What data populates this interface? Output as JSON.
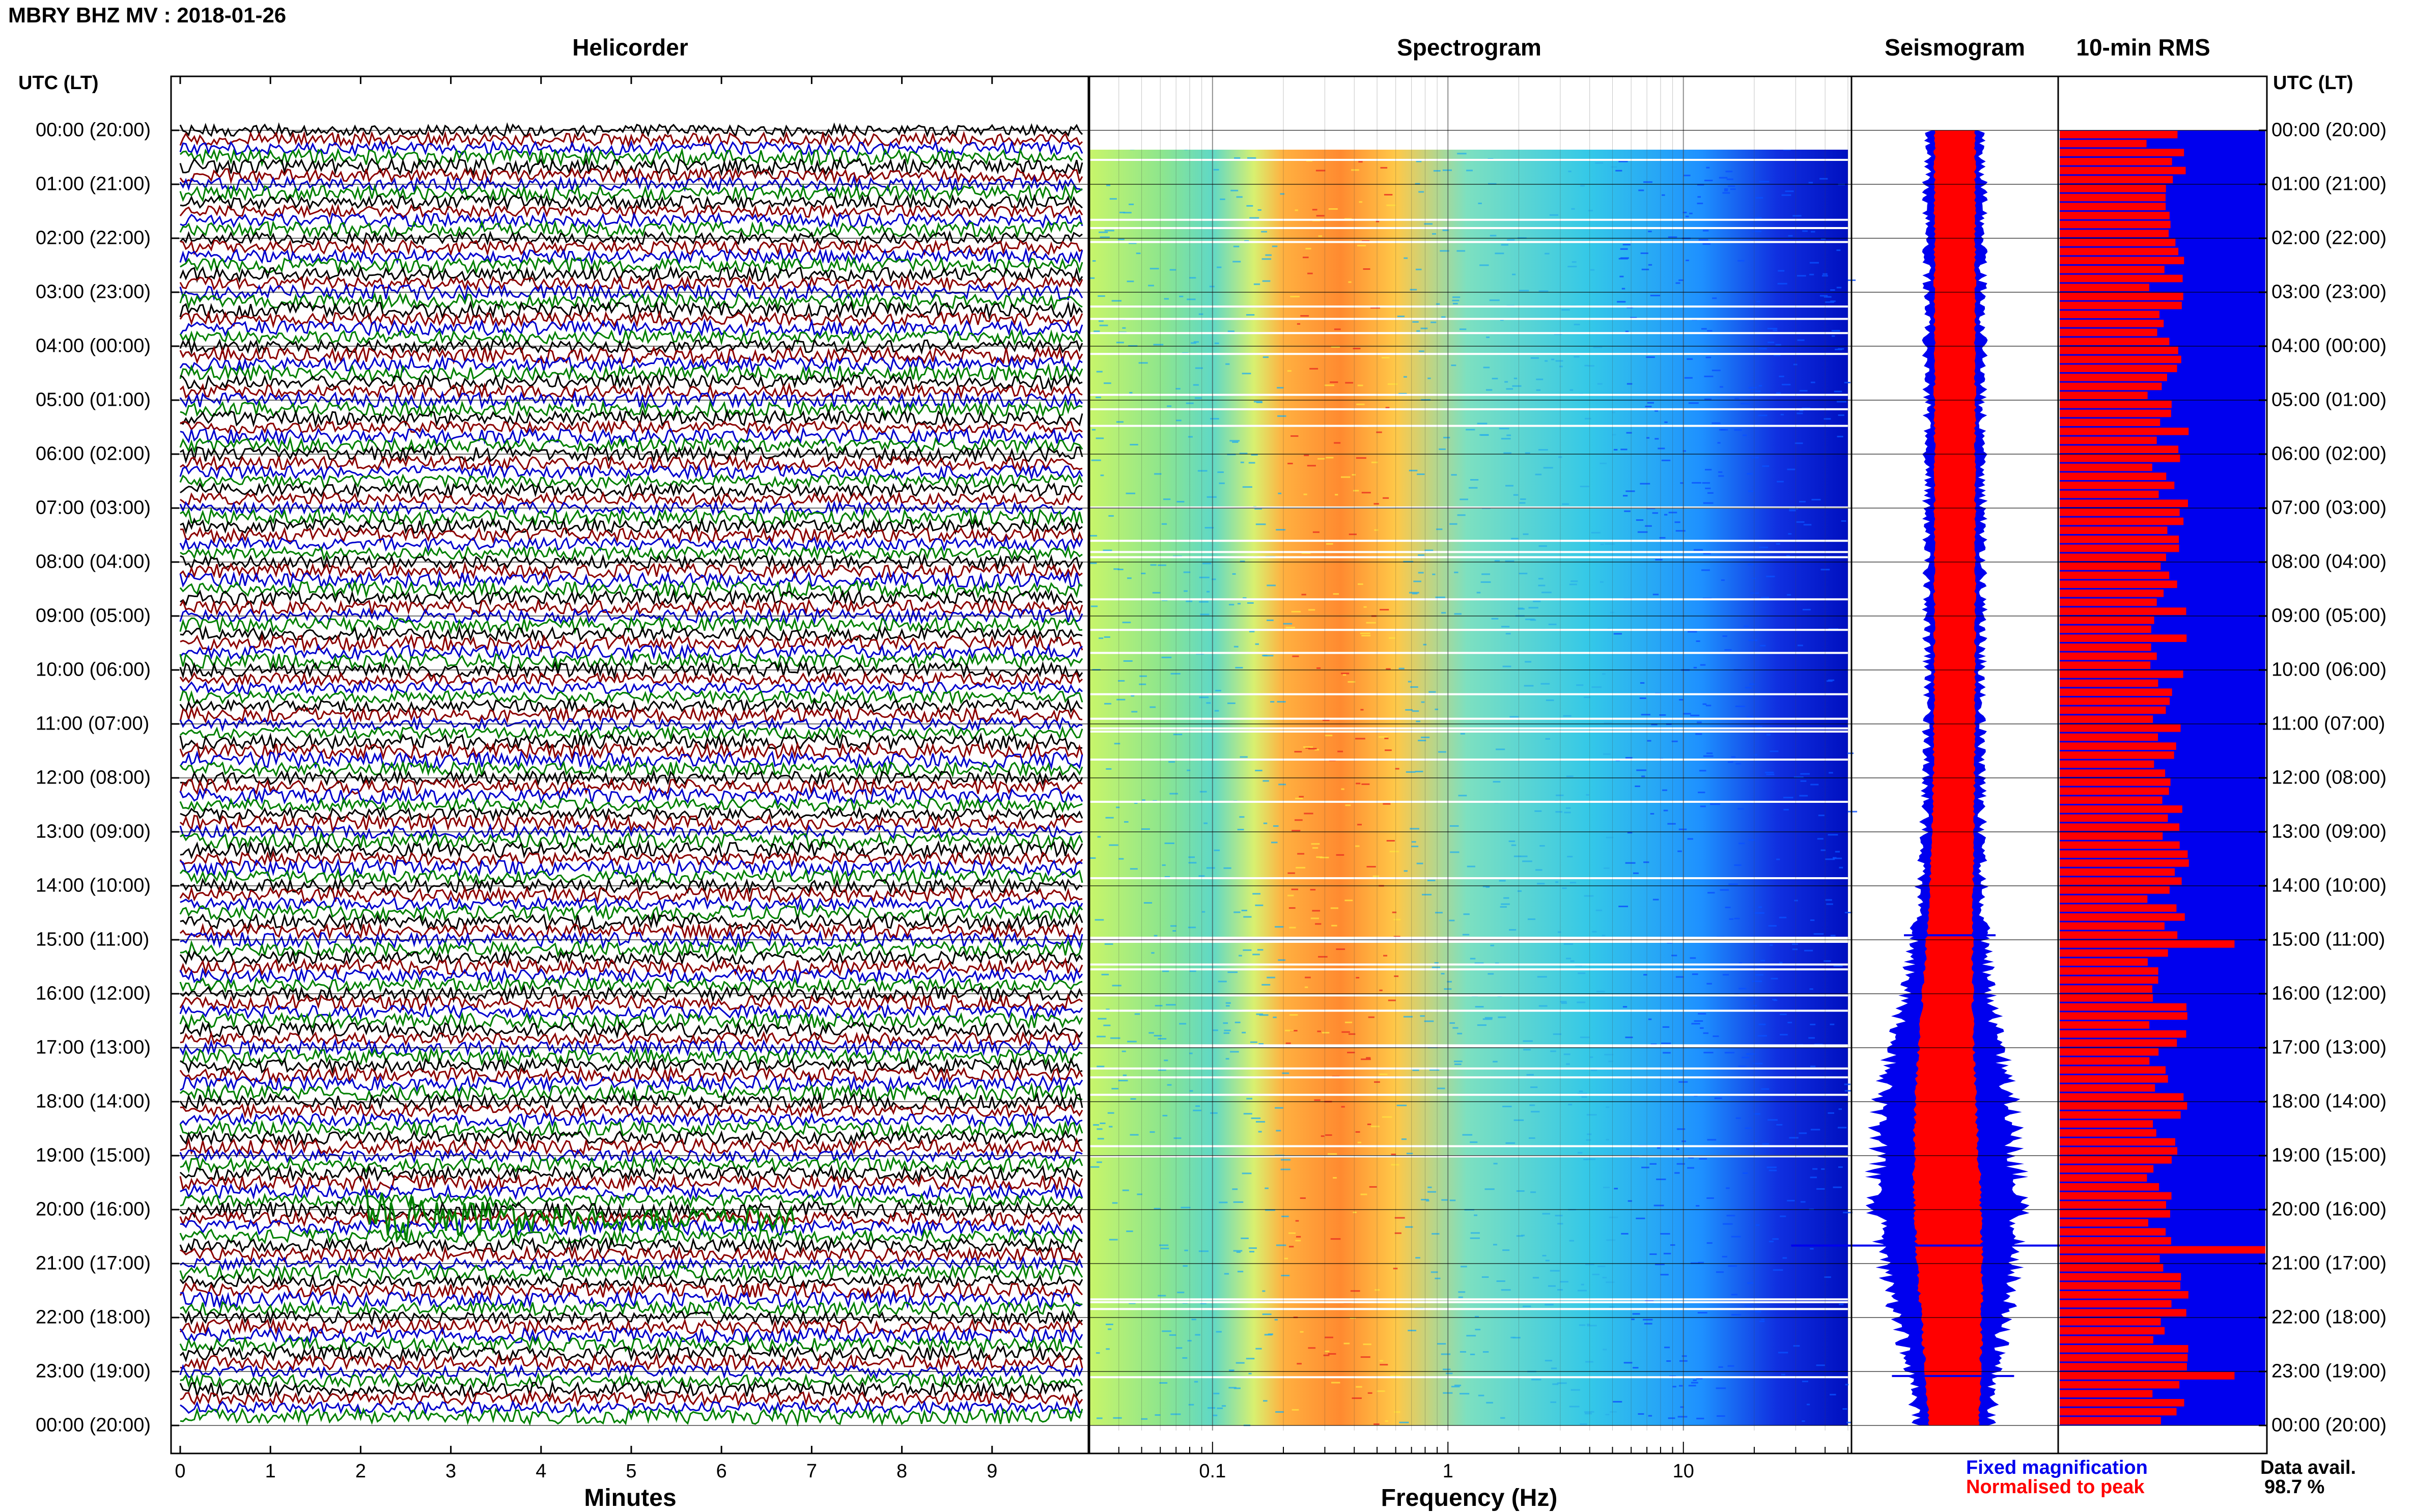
{
  "title": "MBRY BHZ MV : 2018-01-26",
  "panels": {
    "helicorder": "Helicorder",
    "spectrogram": "Spectrogram",
    "seismogram": "Seismogram",
    "rms": "10-min RMS"
  },
  "utc_label_left": "UTC (LT)",
  "utc_label_right": "UTC (LT)",
  "time_labels": [
    "00:00 (20:00)",
    "01:00 (21:00)",
    "02:00 (22:00)",
    "03:00 (23:00)",
    "04:00 (00:00)",
    "05:00 (01:00)",
    "06:00 (02:00)",
    "07:00 (03:00)",
    "08:00 (04:00)",
    "09:00 (05:00)",
    "10:00 (06:00)",
    "11:00 (07:00)",
    "12:00 (08:00)",
    "13:00 (09:00)",
    "14:00 (10:00)",
    "15:00 (11:00)",
    "16:00 (12:00)",
    "17:00 (13:00)",
    "18:00 (14:00)",
    "19:00 (15:00)",
    "20:00 (16:00)",
    "21:00 (17:00)",
    "22:00 (18:00)",
    "23:00 (19:00)",
    "00:00 (20:00)"
  ],
  "x_labels": {
    "helicorder": "Minutes",
    "spectrogram": "Frequency (Hz)"
  },
  "legend": {
    "fixed": "Fixed magnification",
    "normalised": "Normalised to peak",
    "data_avail_label": "Data avail.",
    "data_avail_value": "98.7 %"
  },
  "colors": {
    "fixed": "#0000ee",
    "normalised": "#ff0000",
    "trace_cycle": [
      "#000000",
      "#8b0000",
      "#0000cd",
      "#008000"
    ]
  },
  "chart_data": [
    {
      "type": "line",
      "title": "Helicorder",
      "xlabel": "Minutes",
      "x_ticks": [
        0,
        1,
        2,
        3,
        4,
        5,
        6,
        7,
        8,
        9
      ],
      "xlim": [
        0,
        10
      ],
      "rows_per_hour": 6,
      "y_tick_labels": [
        "00:00 (20:00)",
        "01:00 (21:00)",
        "02:00 (22:00)",
        "03:00 (23:00)",
        "04:00 (00:00)",
        "05:00 (01:00)",
        "06:00 (02:00)",
        "07:00 (03:00)",
        "08:00 (04:00)",
        "09:00 (05:00)",
        "10:00 (06:00)",
        "11:00 (07:00)",
        "12:00 (08:00)",
        "13:00 (09:00)",
        "14:00 (10:00)",
        "15:00 (11:00)",
        "16:00 (12:00)",
        "17:00 (13:00)",
        "18:00 (14:00)",
        "19:00 (15:00)",
        "20:00 (16:00)",
        "21:00 (17:00)",
        "22:00 (18:00)",
        "23:00 (19:00)",
        "00:00 (20:00)"
      ]
    },
    {
      "type": "heatmap",
      "title": "Spectrogram",
      "xlabel": "Frequency (Hz)",
      "x_scale": "log",
      "x_tick_labels": [
        "0.1",
        "1",
        "10"
      ],
      "xlim": [
        0.03,
        50
      ],
      "peak_band_hz": [
        0.2,
        0.6
      ]
    },
    {
      "type": "line",
      "title": "Seismogram",
      "series_colors": [
        "#0000ee",
        "#ff0000"
      ]
    },
    {
      "type": "bar",
      "title": "10-min RMS",
      "orientation": "horizontal",
      "rows": 144,
      "normalised_fraction": 0.6
    }
  ]
}
